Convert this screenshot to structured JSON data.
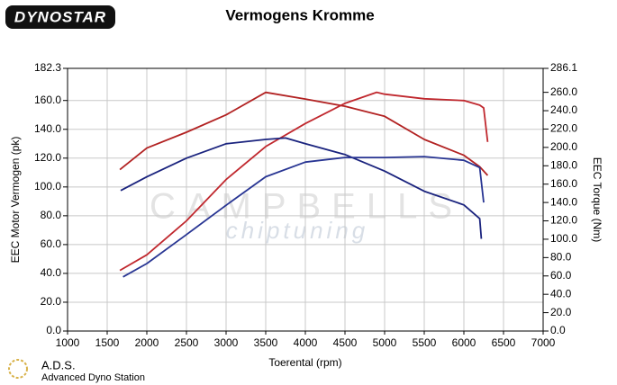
{
  "chart_data": {
    "type": "line",
    "title": "Vermogens Kromme",
    "logo": "DYNOSTAR",
    "footer_title": "A.D.S.",
    "footer_subtitle": "Advanced Dyno Station",
    "watermark": [
      "CAMPBELLS",
      "chiptuning"
    ],
    "x_label": "Toerental (rpm)",
    "y_label": "EEC Motor Vermogen (pk)",
    "y2_label": "EEC Torque (Nm)",
    "xlim": [
      1000,
      7000
    ],
    "xticks": [
      1000,
      1500,
      2000,
      2500,
      3000,
      3500,
      4000,
      4500,
      5000,
      5500,
      6000,
      6500,
      7000
    ],
    "ylim": [
      0,
      182.3
    ],
    "yticks": [
      {
        "value": 0,
        "label": "0.0"
      },
      {
        "value": 20,
        "label": "20.0"
      },
      {
        "value": 40,
        "label": "40.0"
      },
      {
        "value": 60,
        "label": "60.0"
      },
      {
        "value": 80,
        "label": "80.0"
      },
      {
        "value": 100,
        "label": "100.0"
      },
      {
        "value": 120,
        "label": "120.0"
      },
      {
        "value": 140,
        "label": "140.0"
      },
      {
        "value": 160,
        "label": "160.0"
      },
      182.3
    ],
    "y2lim": [
      0,
      286.1
    ],
    "y2ticks": [
      {
        "value": 0,
        "label": "0.0"
      },
      {
        "value": 20,
        "label": "20.0"
      },
      {
        "value": 40,
        "label": "40.0"
      },
      {
        "value": 60,
        "label": "60.0"
      },
      {
        "value": 80,
        "label": "80.0"
      },
      {
        "value": 100,
        "label": "100.0"
      },
      {
        "value": 120,
        "label": "120.0"
      },
      {
        "value": 140,
        "label": "140.0"
      },
      {
        "value": 160,
        "label": "160.0"
      },
      {
        "value": 180,
        "label": "180.0"
      },
      {
        "value": 200,
        "label": "200.0"
      },
      {
        "value": 220,
        "label": "220.0"
      },
      {
        "value": 240,
        "label": "240.0"
      },
      {
        "value": 260,
        "label": "260.0"
      },
      286.1
    ],
    "grid": true,
    "series": [
      {
        "color": "#b22222",
        "axis": "y",
        "x": [
          1660,
          2000,
          2500,
          3000,
          3500,
          4000,
          4500,
          5000,
          5500,
          6000,
          6200,
          6300
        ],
        "values": [
          112,
          127,
          138,
          150,
          165.6,
          161,
          156,
          149,
          133,
          122,
          114,
          108
        ]
      },
      {
        "color": "#c0282e",
        "axis": "y2",
        "x": [
          1660,
          2000,
          2500,
          3000,
          3500,
          4000,
          4500,
          4900,
          5000,
          5500,
          6000,
          6200,
          6250,
          6300
        ],
        "values": [
          66,
          83,
          120,
          165,
          201,
          226,
          248,
          260,
          258,
          253,
          251,
          246,
          243,
          206
        ]
      },
      {
        "color": "#1a237e",
        "axis": "y",
        "x": [
          1670,
          2000,
          2500,
          3000,
          3500,
          3750,
          4000,
          4500,
          5000,
          5500,
          6000,
          6200,
          6220
        ],
        "values": [
          97.5,
          107,
          120,
          130,
          133,
          134,
          130,
          122.5,
          111,
          97,
          87.5,
          78,
          64
        ]
      },
      {
        "color": "#283593",
        "axis": "y2",
        "x": [
          1700,
          2000,
          2500,
          3000,
          3500,
          4000,
          4500,
          5000,
          5500,
          6000,
          6200,
          6250
        ],
        "values": [
          59,
          73.5,
          105,
          137,
          168,
          184,
          189,
          189,
          190,
          186,
          178,
          140
        ]
      }
    ]
  }
}
